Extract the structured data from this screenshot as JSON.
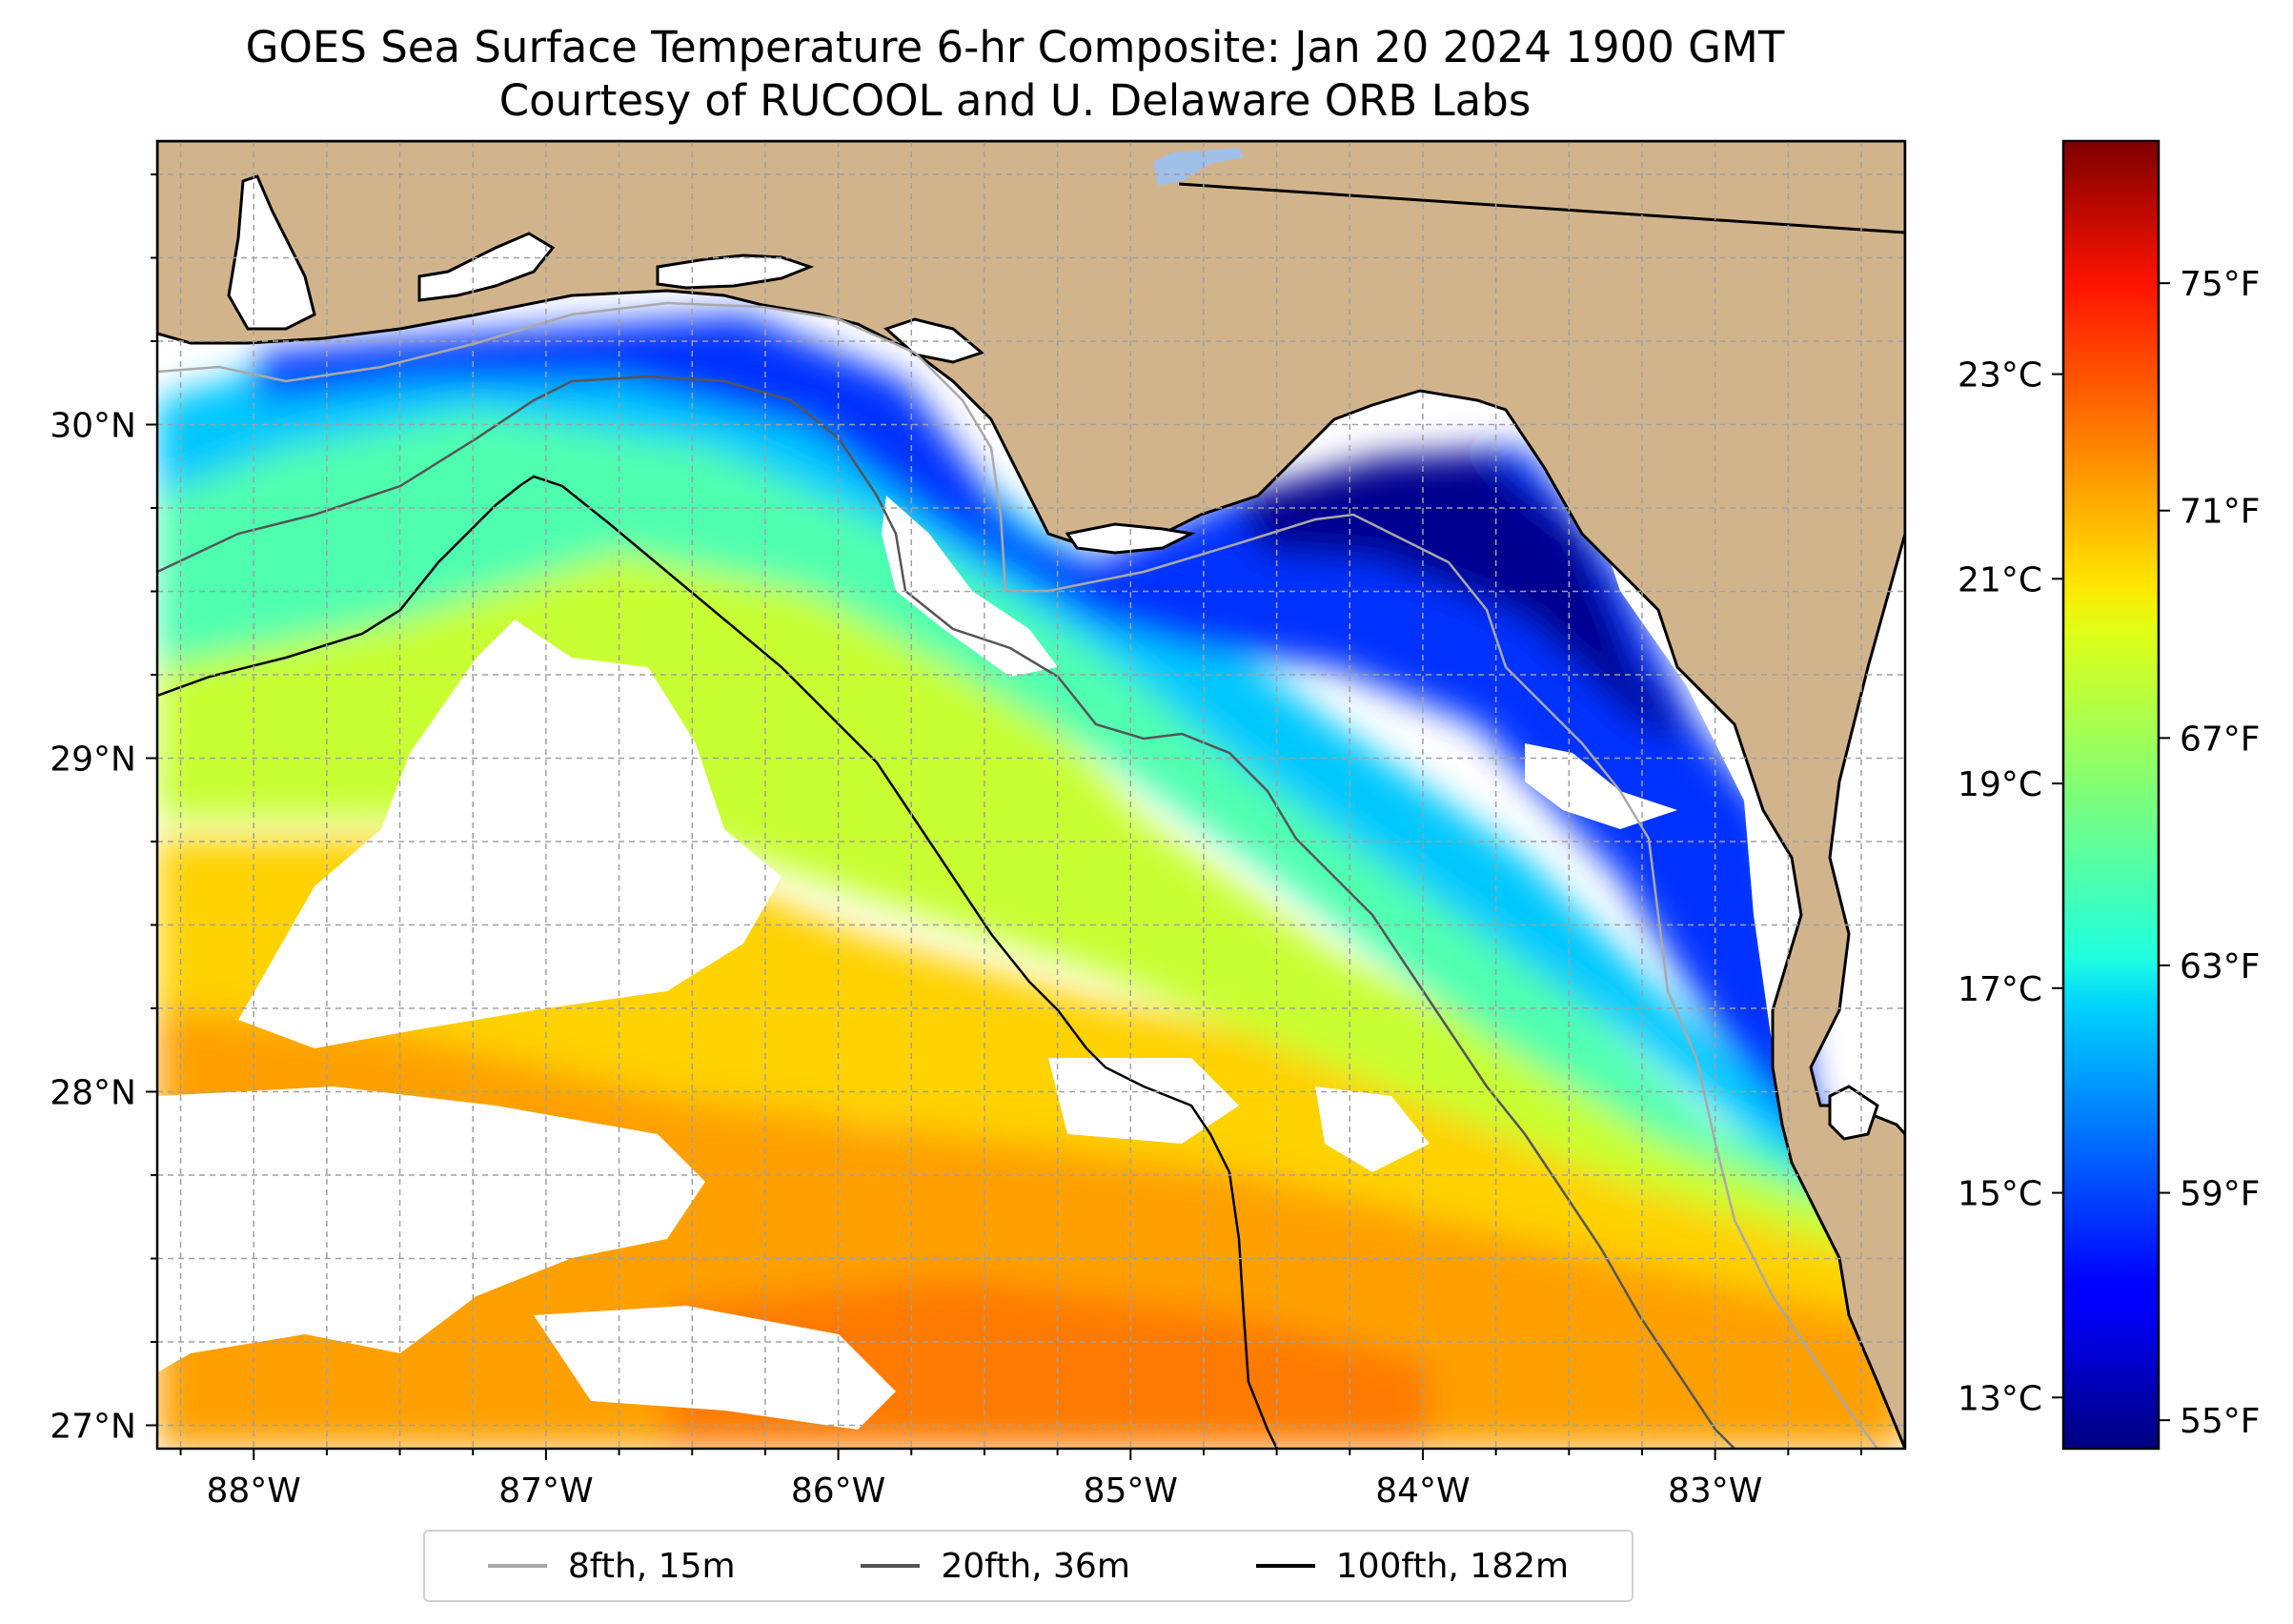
{
  "title": {
    "line1": "GOES Sea Surface Temperature 6-hr Composite: Jan 20 2024 1900 GMT",
    "line2": "Courtesy of RUCOOL and U. Delaware ORB Labs"
  },
  "map": {
    "lon_range": [
      -88.33,
      -82.35
    ],
    "lat_range": [
      26.93,
      30.85
    ],
    "land_color": "#d2b48c",
    "ocean_nodata_color": "#ffffff",
    "coastline_color": "#000000",
    "gridlines": true
  },
  "axes": {
    "lon_ticks": [
      {
        "value": -88,
        "label": "88°W"
      },
      {
        "value": -87,
        "label": "87°W"
      },
      {
        "value": -86,
        "label": "86°W"
      },
      {
        "value": -85,
        "label": "85°W"
      },
      {
        "value": -84,
        "label": "84°W"
      },
      {
        "value": -83,
        "label": "83°W"
      }
    ],
    "lat_ticks": [
      {
        "value": 27,
        "label": "27°N"
      },
      {
        "value": 28,
        "label": "28°N"
      },
      {
        "value": 29,
        "label": "29°N"
      },
      {
        "value": 30,
        "label": "30°N"
      }
    ]
  },
  "colorbar": {
    "colormap": "jet",
    "range_f": [
      54.5,
      77.5
    ],
    "fahrenheit_ticks": [
      {
        "value": 55,
        "label": "55°F"
      },
      {
        "value": 59,
        "label": "59°F"
      },
      {
        "value": 63,
        "label": "63°F"
      },
      {
        "value": 67,
        "label": "67°F"
      },
      {
        "value": 71,
        "label": "71°F"
      },
      {
        "value": 75,
        "label": "75°F"
      }
    ],
    "celsius_ticks": [
      {
        "value": 13,
        "label": "13°C"
      },
      {
        "value": 15,
        "label": "15°C"
      },
      {
        "value": 17,
        "label": "17°C"
      },
      {
        "value": 19,
        "label": "19°C"
      },
      {
        "value": 21,
        "label": "21°C"
      },
      {
        "value": 23,
        "label": "23°C"
      }
    ]
  },
  "legend": {
    "items": [
      {
        "label": "8fth, 15m",
        "color": "#a9a9a9"
      },
      {
        "label": "20fth, 36m",
        "color": "#555555"
      },
      {
        "label": "100fth, 182m",
        "color": "#000000"
      }
    ]
  }
}
